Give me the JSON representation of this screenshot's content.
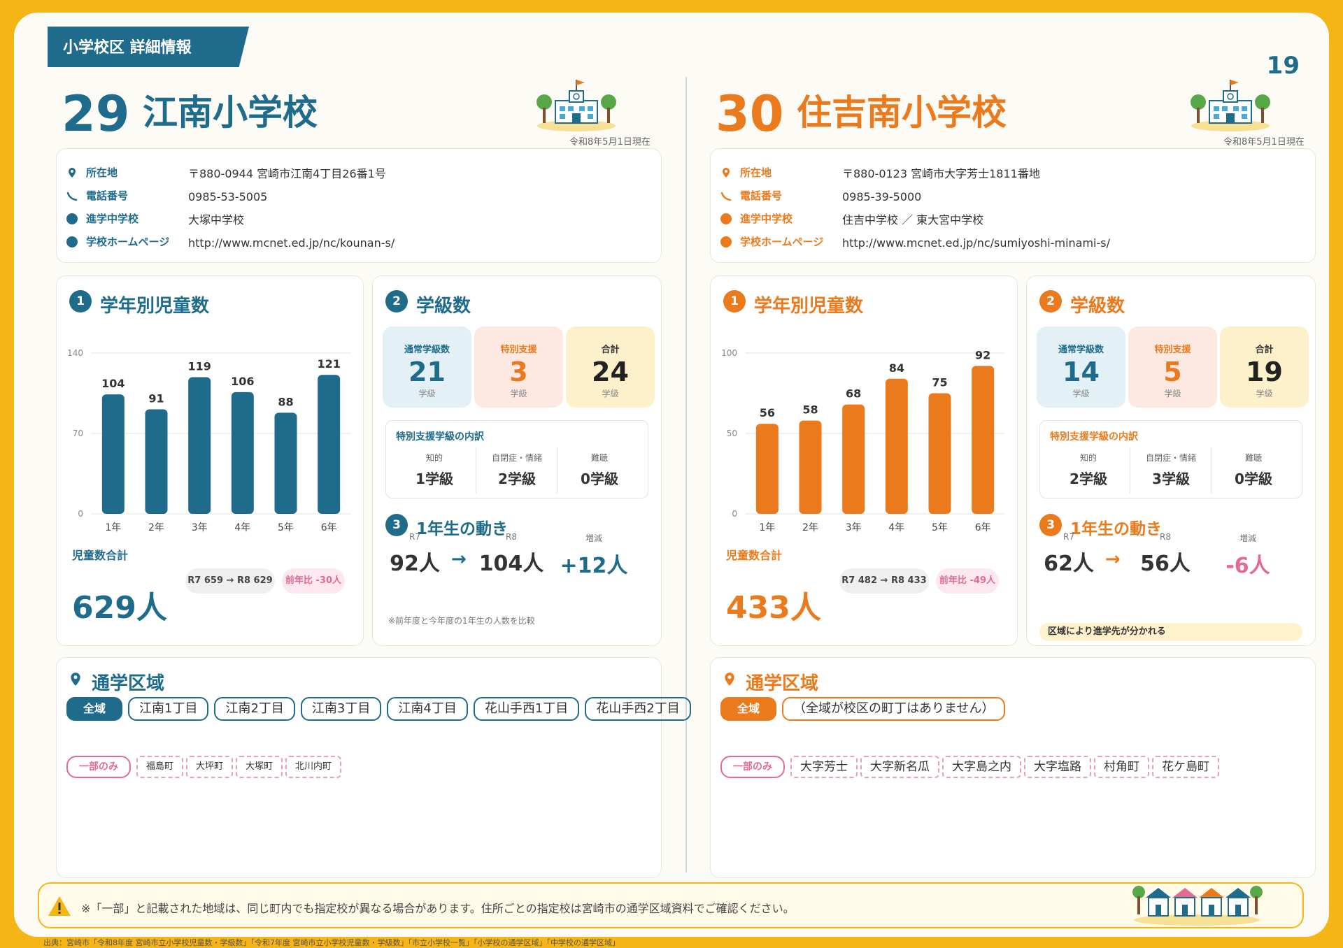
{
  "header": {
    "category": "小学校区 詳細情報",
    "page_number": "19"
  },
  "colors": {
    "teal": "#1e6b8c",
    "orange": "#ea7a1c",
    "pink": "#e16b91",
    "yellow": "#f5b516"
  },
  "schools": [
    {
      "number": "29",
      "name": "江南小学校",
      "as_of": "令和8年5月1日現在",
      "info": [
        {
          "icon": "map-pin-icon",
          "label": "所在地",
          "value": "〒880-0944 宮崎市江南4丁目26番1号"
        },
        {
          "icon": "phone-icon",
          "label": "電話番号",
          "value": "0985-53-5005"
        },
        {
          "icon": "bullet-dot-icon",
          "label": "進学中学校",
          "value": "大塚中学校"
        },
        {
          "icon": "bullet-dot-icon",
          "label": "学校ホームページ",
          "value": "http://www.mcnet.ed.jp/nc/kounan-s/"
        }
      ],
      "students": {
        "badge": "1",
        "title": "学年別児童数",
        "total_label": "児童数合計",
        "total": "629人",
        "compare": "R7 659 → R8 629",
        "diff": "前年比 -30人"
      },
      "classes": {
        "badge": "2",
        "title": "学級数",
        "boxes": [
          {
            "title": "通常学級数",
            "value": "21",
            "unit": "学級"
          },
          {
            "title": "特別支援",
            "value": "3",
            "unit": "学級"
          },
          {
            "title": "合計",
            "value": "24",
            "unit": "学級"
          }
        ],
        "special_title": "特別支援学級の内訳",
        "special": [
          {
            "title": "知的",
            "value": "1学級"
          },
          {
            "title": "自閉症・情緒",
            "value": "2学級"
          },
          {
            "title": "難聴",
            "value": "0学級"
          }
        ]
      },
      "first_grade": {
        "badge": "3",
        "title": "1年生の動き",
        "items": [
          {
            "title": "R7",
            "value": "92人"
          },
          {
            "title": "R8",
            "value": "104人"
          },
          {
            "title": "増減",
            "value": "+12人"
          }
        ],
        "arrow": "→",
        "note": "※前年度と今年度の1年生の人数を比較"
      },
      "district": {
        "title": "通学区域",
        "all_label": "全域",
        "all_areas": [
          "江南1丁目",
          "江南2丁目",
          "江南3丁目",
          "江南4丁目",
          "花山手西1丁目",
          "花山手西2丁目"
        ],
        "partial_label": "一部のみ",
        "partial_areas": [
          "福島町",
          "大坪町",
          "大塚町",
          "北川内町"
        ]
      }
    },
    {
      "number": "30",
      "name": "住吉南小学校",
      "as_of": "令和8年5月1日現在",
      "info": [
        {
          "icon": "map-pin-icon",
          "label": "所在地",
          "value": "〒880-0123 宮崎市大字芳士1811番地"
        },
        {
          "icon": "phone-icon",
          "label": "電話番号",
          "value": "0985-39-5000"
        },
        {
          "icon": "bullet-dot-icon",
          "label": "進学中学校",
          "value": "住吉中学校 ／ 東大宮中学校"
        },
        {
          "icon": "bullet-dot-icon",
          "label": "学校ホームページ",
          "value": "http://www.mcnet.ed.jp/nc/sumiyoshi-minami-s/"
        }
      ],
      "students": {
        "badge": "1",
        "title": "学年別児童数",
        "total_label": "児童数合計",
        "total": "433人",
        "compare": "R7 482 → R8 433",
        "diff": "前年比 -49人"
      },
      "classes": {
        "badge": "2",
        "title": "学級数",
        "boxes": [
          {
            "title": "通常学級数",
            "value": "14",
            "unit": "学級"
          },
          {
            "title": "特別支援",
            "value": "5",
            "unit": "学級"
          },
          {
            "title": "合計",
            "value": "19",
            "unit": "学級"
          }
        ],
        "special_title": "特別支援学級の内訳",
        "special": [
          {
            "title": "知的",
            "value": "2学級"
          },
          {
            "title": "自閉症・情緒",
            "value": "3学級"
          },
          {
            "title": "難聴",
            "value": "0学級"
          }
        ]
      },
      "first_grade": {
        "badge": "3",
        "title": "1年生の動き",
        "items": [
          {
            "title": "R7",
            "value": "62人"
          },
          {
            "title": "R8",
            "value": "56人"
          },
          {
            "title": "増減",
            "value": "-6人"
          }
        ],
        "arrow": "→",
        "note": "区域により進学先が分かれる"
      },
      "district": {
        "title": "通学区域",
        "all_label": "全域",
        "all_areas": [
          "（全域が校区の町丁はありません）"
        ],
        "partial_label": "一部のみ",
        "partial_areas": [
          "大字芳士",
          "大字新名瓜",
          "大字島之内",
          "大字塩路",
          "村角町",
          "花ケ島町"
        ]
      }
    }
  ],
  "chart_data": [
    {
      "type": "bar",
      "categories": [
        "1年",
        "2年",
        "3年",
        "4年",
        "5年",
        "6年"
      ],
      "values": [
        104,
        91,
        119,
        106,
        88,
        121
      ],
      "yticks": [
        0,
        70,
        140
      ],
      "ylim": [
        0,
        140
      ],
      "color": "#1e6b8c",
      "grid": true
    },
    {
      "type": "bar",
      "categories": [
        "1年",
        "2年",
        "3年",
        "4年",
        "5年",
        "6年"
      ],
      "values": [
        56,
        58,
        68,
        84,
        75,
        92
      ],
      "yticks": [
        0,
        50,
        100
      ],
      "ylim": [
        0,
        100
      ],
      "color": "#ea7a1c",
      "grid": true
    }
  ],
  "footer": {
    "icon": "warning-icon",
    "text": "※「一部」と記載された地域は、同じ町内でも指定校が異なる場合があります。住所ごとの指定校は宮崎市の通学区域資料でご確認ください。"
  },
  "source": "出典：宮崎市「令和8年度 宮崎市立小学校児童数・学級数」「令和7年度 宮崎市立小学校児童数・学級数」「市立小学校一覧」「小学校の通学区域」「中学校の通学区域」"
}
